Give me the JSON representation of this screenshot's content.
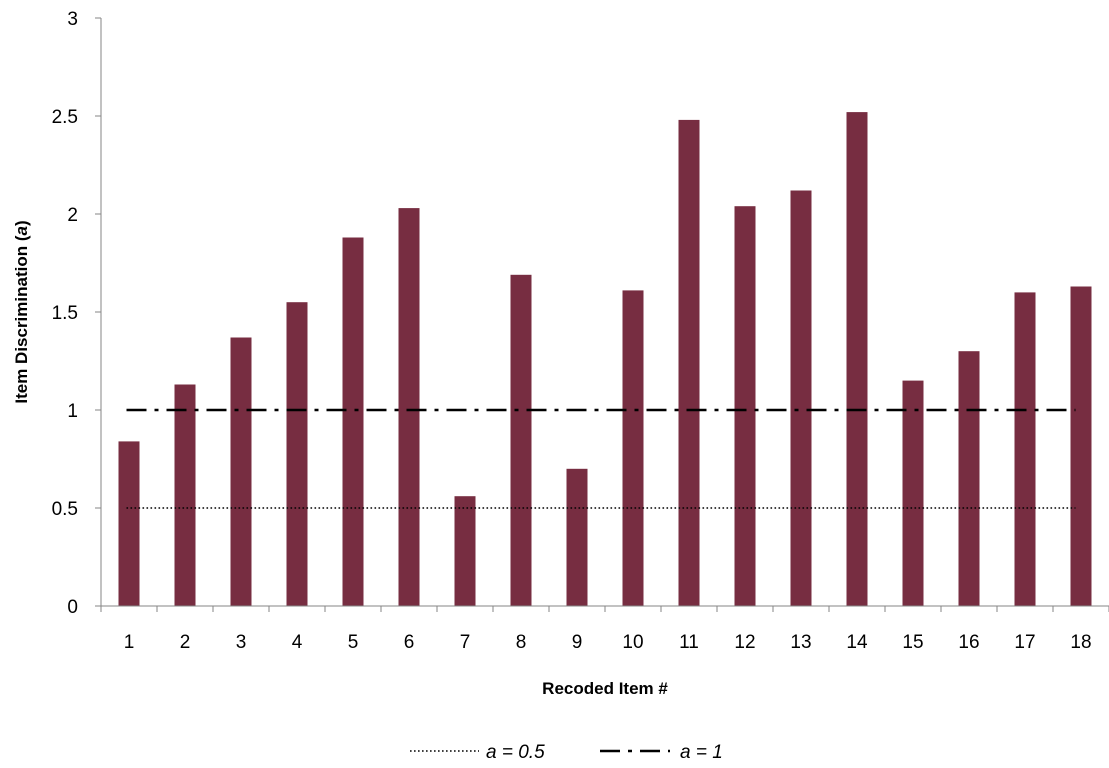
{
  "chart_data": {
    "type": "bar",
    "categories": [
      "1",
      "2",
      "3",
      "4",
      "5",
      "6",
      "7",
      "8",
      "9",
      "10",
      "11",
      "12",
      "13",
      "14",
      "15",
      "16",
      "17",
      "18"
    ],
    "series": [
      {
        "values": [
          0.84,
          1.13,
          1.37,
          1.55,
          1.88,
          2.03,
          0.56,
          1.69,
          0.7,
          1.61,
          2.48,
          2.04,
          2.12,
          2.52,
          1.15,
          1.3,
          1.6,
          1.63
        ]
      }
    ],
    "reference_lines": [
      {
        "value": 0.5,
        "label": "a = 0.5",
        "style": "dotted"
      },
      {
        "value": 1,
        "label": "a = 1",
        "style": "dash-dot"
      }
    ],
    "xlabel": "Recoded Item #",
    "ylabel_main": "Item Discrimination (",
    "ylabel_var": "a",
    "ylabel_close": ")",
    "ylim": [
      0,
      3
    ],
    "yticks": [
      "0",
      "0.5",
      "1",
      "1.5",
      "2",
      "2.5",
      "3"
    ],
    "grid": false,
    "legend_position": "bottom-center",
    "bar_color": "#772D41"
  }
}
